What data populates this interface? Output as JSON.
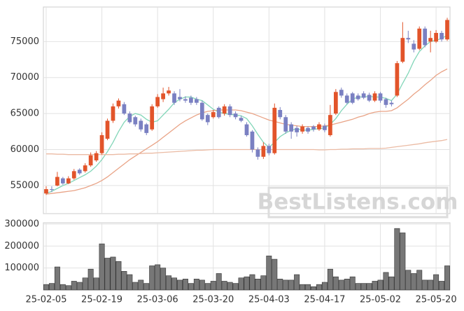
{
  "chart_data": [
    {
      "type": "candlestick",
      "open": [
        53900,
        54500,
        55000,
        56000,
        55300,
        56000,
        57200,
        57000,
        57800,
        58500,
        59500,
        61500,
        64000,
        66000,
        66300,
        65000,
        64500,
        64000,
        63500,
        62800,
        66000,
        67000,
        67800,
        67800,
        67300,
        67000,
        67200,
        67000,
        66500,
        64800,
        64500,
        65800,
        65000,
        66000,
        65000,
        64400,
        63500,
        62500,
        60000,
        59000,
        60500,
        59500,
        65500,
        64500,
        63500,
        63000,
        62500,
        63000,
        63200,
        62800,
        63300,
        62000,
        65000,
        68300,
        67500,
        67800,
        67500,
        67800,
        67600,
        66800,
        67800,
        67000,
        66500,
        67500,
        72200,
        75500,
        74700,
        74000,
        76800,
        75000,
        75000,
        76200,
        75300
      ],
      "high": [
        54900,
        54900,
        56900,
        56200,
        56300,
        57300,
        57400,
        58100,
        59600,
        59800,
        62400,
        64300,
        66400,
        67100,
        66600,
        65300,
        64700,
        64300,
        63700,
        66300,
        67700,
        68600,
        68700,
        68100,
        68400,
        67400,
        67500,
        67300,
        66800,
        65000,
        65500,
        66000,
        66300,
        66300,
        65300,
        64700,
        63800,
        62700,
        60300,
        61000,
        60800,
        66400,
        65900,
        64800,
        63800,
        63300,
        63500,
        63200,
        63400,
        63800,
        63600,
        66200,
        68400,
        68600,
        67800,
        68000,
        67800,
        68100,
        67900,
        68100,
        68000,
        67200,
        66800,
        72300,
        77700,
        76500,
        75200,
        77100,
        77100,
        76500,
        76600,
        76500,
        78300
      ],
      "low": [
        53700,
        54100,
        54900,
        55100,
        55200,
        55800,
        56500,
        56800,
        57600,
        58300,
        59300,
        61300,
        63700,
        65700,
        64800,
        63600,
        63200,
        62500,
        62000,
        62600,
        65800,
        66600,
        67500,
        66200,
        66700,
        66500,
        66200,
        66200,
        64000,
        63400,
        64300,
        64300,
        64700,
        64500,
        64200,
        63800,
        61800,
        59600,
        58600,
        58700,
        59200,
        59300,
        64200,
        62200,
        61500,
        61800,
        62200,
        62200,
        62500,
        62600,
        62400,
        61800,
        64800,
        67200,
        66300,
        66300,
        66800,
        67000,
        66600,
        66600,
        66500,
        65800,
        66000,
        67300,
        72000,
        74800,
        73500,
        73800,
        74200,
        73500,
        74800,
        75000,
        75100
      ],
      "close": [
        54500,
        54400,
        56200,
        55300,
        56000,
        57000,
        56700,
        57800,
        59200,
        59500,
        62000,
        64000,
        66000,
        66800,
        65000,
        63800,
        63500,
        62800,
        62300,
        66000,
        67300,
        67800,
        68200,
        66500,
        67000,
        66800,
        66500,
        66500,
        64200,
        63800,
        65200,
        64500,
        66000,
        64800,
        64500,
        64000,
        62000,
        60000,
        59000,
        60500,
        59500,
        65800,
        64500,
        62500,
        62500,
        62400,
        63200,
        62500,
        62800,
        63500,
        62700,
        64800,
        68000,
        67500,
        66500,
        66500,
        67000,
        67200,
        66800,
        67800,
        66800,
        66200,
        66300,
        72000,
        75500,
        75300,
        73900,
        76800,
        74500,
        75500,
        76200,
        75300,
        78000
      ],
      "up_color": "#e2542a",
      "down_color": "#7a80c2",
      "series": [
        {
          "color": "#82d6b8",
          "values": [
            53900,
            54200,
            54600,
            55000,
            55300,
            55700,
            56100,
            56500,
            57000,
            57700,
            58600,
            59700,
            61000,
            62500,
            63800,
            64600,
            65000,
            64800,
            64200,
            63800,
            64000,
            64800,
            65600,
            66500,
            67000,
            67300,
            67300,
            67000,
            66800,
            66200,
            65600,
            65200,
            65000,
            64900,
            64800,
            64700,
            64300,
            63300,
            62100,
            61000,
            60300,
            61000,
            61800,
            62300,
            62700,
            62900,
            62700,
            62700,
            62800,
            62900,
            63000,
            63500,
            64300,
            65400,
            66300,
            67000,
            67300,
            67300,
            67400,
            67300,
            67300,
            67100,
            66800,
            67700,
            69200,
            70600,
            72300,
            73600,
            74400,
            75000,
            75200,
            75400,
            75900
          ]
        },
        {
          "color": "#e9a386",
          "values": [
            53800,
            53900,
            54000,
            54100,
            54200,
            54300,
            54500,
            54700,
            55000,
            55300,
            55700,
            56200,
            56800,
            57400,
            58000,
            58600,
            59100,
            59600,
            60100,
            60600,
            61100,
            61700,
            62300,
            62900,
            63500,
            64000,
            64400,
            64800,
            65100,
            65300,
            65400,
            65500,
            65500,
            65500,
            65500,
            65400,
            65200,
            65000,
            64700,
            64400,
            64100,
            63900,
            63700,
            63500,
            63400,
            63300,
            63200,
            63200,
            63200,
            63200,
            63300,
            63400,
            63600,
            63800,
            64000,
            64200,
            64500,
            64700,
            65000,
            65200,
            65300,
            65300,
            65400,
            65800,
            66400,
            67000,
            67700,
            68300,
            69000,
            69600,
            70300,
            70800,
            71200
          ]
        },
        {
          "color": "#ebbba4",
          "values": [
            59400,
            59400,
            59350,
            59350,
            59300,
            59300,
            59300,
            59300,
            59300,
            59300,
            59300,
            59300,
            59300,
            59350,
            59350,
            59400,
            59400,
            59450,
            59500,
            59500,
            59550,
            59600,
            59650,
            59700,
            59750,
            59800,
            59850,
            59900,
            59900,
            59950,
            60000,
            60000,
            60000,
            60000,
            60000,
            60000,
            60000,
            60000,
            60000,
            60000,
            60000,
            60000,
            60000,
            60000,
            60000,
            60000,
            60000,
            60000,
            60000,
            59950,
            59950,
            60000,
            60000,
            60050,
            60050,
            60100,
            60100,
            60100,
            60150,
            60150,
            60150,
            60200,
            60300,
            60400,
            60500,
            60600,
            60700,
            60800,
            60950,
            61050,
            61150,
            61250,
            61400
          ]
        }
      ],
      "ylim": [
        51100,
        79800
      ],
      "yticks": [
        55000,
        60000,
        65000,
        70000,
        75000
      ],
      "grid": true,
      "watermark": "BestListens.com"
    },
    {
      "type": "bar",
      "categories": [
        "25-02-05",
        null,
        null,
        null,
        null,
        null,
        null,
        null,
        null,
        null,
        "25-02-19",
        null,
        null,
        null,
        null,
        null,
        null,
        null,
        null,
        null,
        "25-03-06",
        null,
        null,
        null,
        null,
        null,
        null,
        null,
        null,
        null,
        "25-03-20",
        null,
        null,
        null,
        null,
        null,
        null,
        null,
        null,
        null,
        "25-04-03",
        null,
        null,
        null,
        null,
        null,
        null,
        null,
        null,
        null,
        "25-04-17",
        null,
        null,
        null,
        null,
        null,
        null,
        null,
        null,
        null,
        "25-05-02",
        null,
        null,
        null,
        null,
        null,
        null,
        null,
        null,
        null,
        "25-05-20",
        null,
        null
      ],
      "values": [
        25000,
        30000,
        105000,
        25000,
        20000,
        40000,
        35000,
        55000,
        95000,
        55000,
        210000,
        145000,
        150000,
        130000,
        85000,
        70000,
        35000,
        45000,
        30000,
        110000,
        115000,
        100000,
        65000,
        55000,
        45000,
        50000,
        30000,
        50000,
        45000,
        30000,
        40000,
        75000,
        40000,
        35000,
        30000,
        55000,
        60000,
        70000,
        50000,
        65000,
        155000,
        140000,
        50000,
        45000,
        45000,
        70000,
        25000,
        25000,
        15000,
        25000,
        35000,
        95000,
        60000,
        45000,
        50000,
        60000,
        30000,
        30000,
        30000,
        40000,
        45000,
        80000,
        60000,
        280000,
        260000,
        90000,
        75000,
        90000,
        45000,
        45000,
        70000,
        40000,
        110000
      ],
      "color": "#777777",
      "ylim": [
        0,
        306000
      ],
      "yticks": [
        100000,
        200000,
        300000
      ],
      "grid": true
    }
  ]
}
